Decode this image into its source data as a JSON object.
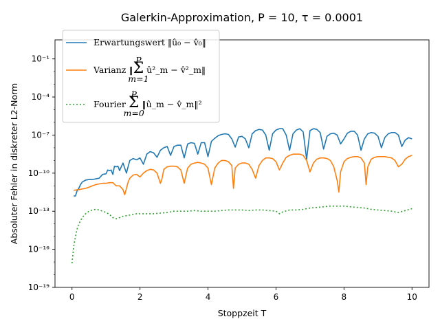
{
  "chart_data": {
    "type": "line",
    "title": "Galerkin-Approximation, P = 10, τ = 0.0001",
    "xlabel": "Stoppzeit T",
    "ylabel": "Absoluter Fehler in diskreter L2-Norm",
    "xlim": [
      -0.5,
      10.5
    ],
    "ylim_log10": [
      -19,
      0.5
    ],
    "y_scale": "log",
    "x_ticks": [
      0,
      2,
      4,
      6,
      8,
      10
    ],
    "x_tick_labels": [
      "0",
      "2",
      "4",
      "6",
      "8",
      "10"
    ],
    "y_ticks_log10": [
      -19,
      -16,
      -13,
      -10,
      -7,
      -4,
      -1
    ],
    "y_tick_labels": [
      "10⁻¹⁹",
      "10⁻¹⁶",
      "10⁻¹³",
      "10⁻¹⁰",
      "10⁻⁷",
      "10⁻⁴",
      "10⁻¹"
    ],
    "legend_position": "top-left",
    "series": [
      {
        "name": "Erwartungswert ‖û₀ − v̂₀‖",
        "color": "#1f77b4",
        "style": "solid",
        "x": [
          0.05,
          0.1,
          0.15,
          0.2,
          0.25,
          0.3,
          0.4,
          0.5,
          0.6,
          0.7,
          0.8,
          0.9,
          1.0,
          1.05,
          1.1,
          1.15,
          1.2,
          1.25,
          1.3,
          1.35,
          1.4,
          1.45,
          1.5,
          1.55,
          1.6,
          1.65,
          1.7,
          1.8,
          1.9,
          2.0,
          2.1,
          2.2,
          2.3,
          2.4,
          2.5,
          2.6,
          2.7,
          2.8,
          2.9,
          3.0,
          3.1,
          3.2,
          3.3,
          3.4,
          3.5,
          3.6,
          3.7,
          3.8,
          3.9,
          4.0,
          4.1,
          4.2,
          4.3,
          4.4,
          4.5,
          4.6,
          4.7,
          4.8,
          4.9,
          5.0,
          5.1,
          5.2,
          5.3,
          5.4,
          5.5,
          5.6,
          5.7,
          5.8,
          5.9,
          6.0,
          6.1,
          6.2,
          6.3,
          6.4,
          6.5,
          6.6,
          6.7,
          6.8,
          6.9,
          7.0,
          7.1,
          7.2,
          7.3,
          7.4,
          7.5,
          7.6,
          7.7,
          7.8,
          7.9,
          8.0,
          8.1,
          8.2,
          8.3,
          8.4,
          8.5,
          8.6,
          8.7,
          8.8,
          8.9,
          9.0,
          9.1,
          9.2,
          9.3,
          9.4,
          9.5,
          9.6,
          9.7,
          9.8,
          9.9,
          10.0
        ],
        "y_log10": [
          -11.8,
          -11.8,
          -11.4,
          -11.2,
          -10.9,
          -10.7,
          -10.55,
          -10.5,
          -10.5,
          -10.45,
          -10.4,
          -10.1,
          -10.05,
          -9.75,
          -9.8,
          -9.75,
          -10.1,
          -9.45,
          -9.5,
          -9.45,
          -9.8,
          -9.5,
          -9.2,
          -9.6,
          -10.0,
          -9.5,
          -9.0,
          -8.85,
          -8.95,
          -8.8,
          -9.3,
          -8.5,
          -8.3,
          -8.4,
          -8.75,
          -8.2,
          -8.0,
          -7.9,
          -8.6,
          -7.9,
          -7.8,
          -7.8,
          -8.8,
          -7.7,
          -7.6,
          -7.65,
          -8.5,
          -7.6,
          -7.6,
          -8.7,
          -7.5,
          -7.25,
          -7.05,
          -6.95,
          -6.9,
          -6.95,
          -7.3,
          -7.95,
          -7.15,
          -7.1,
          -7.3,
          -8.0,
          -6.9,
          -6.65,
          -6.55,
          -6.6,
          -7.0,
          -8.2,
          -6.9,
          -6.6,
          -6.5,
          -6.5,
          -7.0,
          -8.2,
          -6.9,
          -6.6,
          -6.5,
          -6.75,
          -8.9,
          -6.65,
          -6.5,
          -6.55,
          -6.8,
          -8.1,
          -7.1,
          -6.9,
          -6.85,
          -7.0,
          -7.7,
          -7.3,
          -6.85,
          -6.7,
          -6.7,
          -7.0,
          -8.2,
          -7.3,
          -6.9,
          -6.8,
          -6.85,
          -7.1,
          -8.0,
          -7.2,
          -6.9,
          -6.8,
          -6.8,
          -7.0,
          -7.9,
          -7.4,
          -7.2,
          -7.3
        ]
      },
      {
        "name": "Varianz ‖Σ_{m=1}^{P} û²_m − v̂²_m‖",
        "color": "#ff7f0e",
        "style": "solid",
        "x": [
          0.05,
          0.2,
          0.3,
          0.4,
          0.5,
          0.6,
          0.7,
          0.8,
          0.9,
          1.0,
          1.1,
          1.2,
          1.3,
          1.4,
          1.5,
          1.55,
          1.6,
          1.65,
          1.7,
          1.8,
          1.9,
          2.0,
          2.1,
          2.2,
          2.3,
          2.4,
          2.5,
          2.6,
          2.65,
          2.7,
          2.8,
          2.9,
          3.0,
          3.1,
          3.2,
          3.3,
          3.4,
          3.5,
          3.6,
          3.7,
          3.8,
          3.9,
          4.0,
          4.1,
          4.2,
          4.3,
          4.4,
          4.5,
          4.6,
          4.7,
          4.75,
          4.8,
          4.9,
          5.0,
          5.1,
          5.2,
          5.3,
          5.4,
          5.5,
          5.6,
          5.7,
          5.8,
          5.9,
          6.0,
          6.1,
          6.2,
          6.3,
          6.4,
          6.5,
          6.6,
          6.7,
          6.8,
          6.9,
          7.0,
          7.1,
          7.2,
          7.3,
          7.4,
          7.5,
          7.6,
          7.7,
          7.8,
          7.85,
          7.9,
          8.0,
          8.1,
          8.2,
          8.3,
          8.4,
          8.5,
          8.6,
          8.65,
          8.7,
          8.8,
          8.9,
          9.0,
          9.1,
          9.2,
          9.3,
          9.4,
          9.5,
          9.6,
          9.7,
          9.8,
          9.9,
          10.0
        ],
        "y_log10": [
          -11.35,
          -11.3,
          -11.25,
          -11.2,
          -11.1,
          -11.0,
          -10.9,
          -10.85,
          -10.8,
          -10.8,
          -10.75,
          -10.75,
          -11.0,
          -11.0,
          -11.3,
          -11.7,
          -11.2,
          -10.7,
          -10.4,
          -10.15,
          -10.1,
          -10.3,
          -10.0,
          -9.8,
          -9.7,
          -9.75,
          -10.0,
          -10.8,
          -10.4,
          -9.7,
          -9.5,
          -9.45,
          -9.45,
          -9.5,
          -9.75,
          -10.8,
          -9.6,
          -9.3,
          -9.2,
          -9.15,
          -9.2,
          -9.3,
          -9.6,
          -10.9,
          -9.6,
          -9.2,
          -9.0,
          -9.0,
          -9.1,
          -9.4,
          -11.2,
          -9.6,
          -9.3,
          -9.2,
          -9.2,
          -9.3,
          -9.7,
          -10.4,
          -9.4,
          -9.0,
          -8.8,
          -8.8,
          -8.85,
          -9.1,
          -9.75,
          -9.2,
          -8.75,
          -8.6,
          -8.5,
          -8.5,
          -8.5,
          -8.6,
          -9.0,
          -9.9,
          -9.2,
          -8.9,
          -8.8,
          -8.8,
          -8.85,
          -9.0,
          -9.5,
          -10.6,
          -11.5,
          -9.9,
          -9.1,
          -8.85,
          -8.75,
          -8.7,
          -8.7,
          -8.8,
          -9.2,
          -10.9,
          -9.5,
          -8.9,
          -8.75,
          -8.7,
          -8.7,
          -8.7,
          -8.75,
          -8.8,
          -9.0,
          -9.5,
          -9.3,
          -8.9,
          -8.7,
          -8.6
        ]
      },
      {
        "name": "Fourier Σ_{m=0}^{P} ‖û_m − v̂_m‖²",
        "color": "#2ca02c",
        "style": "dotted",
        "x": [
          0.0,
          0.05,
          0.1,
          0.15,
          0.2,
          0.3,
          0.4,
          0.5,
          0.6,
          0.7,
          0.8,
          0.9,
          1.0,
          1.1,
          1.2,
          1.3,
          1.4,
          1.5,
          1.6,
          1.7,
          1.8,
          1.9,
          2.0,
          2.2,
          2.4,
          2.6,
          2.8,
          3.0,
          3.2,
          3.4,
          3.6,
          3.8,
          4.0,
          4.2,
          4.4,
          4.6,
          4.8,
          5.0,
          5.2,
          5.4,
          5.6,
          5.8,
          6.0,
          6.1,
          6.2,
          6.4,
          6.6,
          6.8,
          7.0,
          7.2,
          7.4,
          7.6,
          7.8,
          8.0,
          8.2,
          8.4,
          8.6,
          8.8,
          9.0,
          9.2,
          9.4,
          9.6,
          9.8,
          10.0
        ],
        "y_log10": [
          -17.1,
          -15.8,
          -15.0,
          -14.4,
          -14.0,
          -13.5,
          -13.2,
          -13.0,
          -12.9,
          -12.85,
          -12.9,
          -13.0,
          -13.1,
          -13.25,
          -13.5,
          -13.6,
          -13.5,
          -13.4,
          -13.35,
          -13.3,
          -13.25,
          -13.2,
          -13.2,
          -13.2,
          -13.2,
          -13.15,
          -13.1,
          -13.0,
          -13.0,
          -13.0,
          -12.95,
          -13.0,
          -13.0,
          -13.0,
          -12.95,
          -12.9,
          -12.9,
          -12.9,
          -12.95,
          -12.9,
          -12.9,
          -12.95,
          -13.0,
          -13.2,
          -13.05,
          -12.9,
          -12.9,
          -12.85,
          -12.75,
          -12.7,
          -12.65,
          -12.6,
          -12.6,
          -12.6,
          -12.65,
          -12.7,
          -12.75,
          -12.85,
          -12.9,
          -12.95,
          -13.0,
          -13.1,
          -12.95,
          -12.8
        ]
      }
    ]
  }
}
